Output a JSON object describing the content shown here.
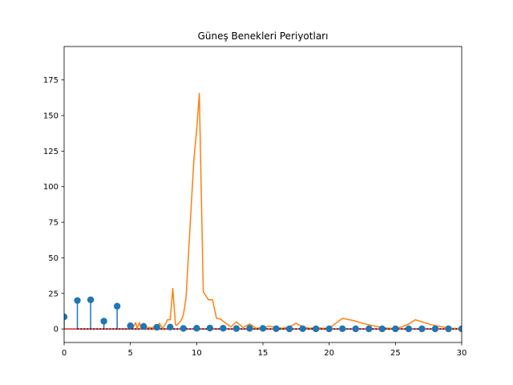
{
  "chart_data": {
    "type": "stem+line",
    "title": "Güneş Benekleri Periyotları",
    "xlabel": "",
    "ylabel": "",
    "xlim": [
      0,
      30
    ],
    "ylim": [
      -9.5,
      198.5
    ],
    "xticks": [
      0,
      5,
      10,
      15,
      20,
      25,
      30
    ],
    "yticks": [
      0,
      25,
      50,
      75,
      100,
      125,
      150,
      175
    ],
    "grid": false,
    "legend": "none",
    "colors": {
      "stem": "#1f77b4",
      "baseline": "#d62728",
      "line": "#ff7f0e",
      "dotted": "#000000"
    },
    "series": [
      {
        "kind": "stem",
        "x": [
          0,
          1,
          2,
          3,
          4,
          5,
          6,
          7,
          8,
          9,
          10,
          11,
          12,
          13,
          14,
          15,
          16,
          17,
          18,
          19,
          20,
          21,
          22,
          23,
          24,
          25,
          26,
          27,
          28,
          29,
          30
        ],
        "values": [
          8.5,
          20,
          20.5,
          5.5,
          16,
          2.2,
          1.8,
          1.2,
          1.3,
          0.4,
          0.5,
          0.6,
          0.5,
          0.3,
          0.4,
          0.4,
          0.2,
          0.1,
          0.2,
          0.1,
          0.1,
          0.2,
          0.1,
          0.1,
          0.1,
          0.1,
          0.1,
          0.1,
          0.1,
          0.1,
          0.1
        ]
      },
      {
        "kind": "line",
        "x": [
          5.0,
          5.2,
          5.4,
          5.5,
          5.6,
          5.7,
          5.8,
          5.9,
          6.0,
          6.2,
          6.4,
          6.6,
          6.8,
          7.0,
          7.2,
          7.4,
          7.6,
          7.8,
          8.0,
          8.2,
          8.4,
          8.5,
          8.6,
          8.8,
          9.0,
          9.2,
          9.4,
          9.6,
          9.8,
          10.0,
          10.2,
          10.5,
          10.9,
          11.2,
          11.5,
          11.8,
          12.2,
          12.6,
          13.0,
          13.5,
          14.0,
          14.5,
          15.0,
          15.5,
          16.0,
          16.5,
          17.0,
          17.5,
          18.0,
          18.5,
          19.0,
          19.5,
          20.0,
          20.5,
          21.0,
          21.8,
          22.5,
          23.2,
          24.0,
          24.5,
          25.0,
          25.5,
          26.0,
          26.5,
          27.0,
          27.7,
          28.5,
          29.2,
          30.0
        ],
        "values": [
          0.5,
          1.0,
          4.5,
          0.5,
          2.5,
          4.5,
          0.3,
          1.0,
          4.0,
          0.5,
          1.2,
          0.8,
          1.5,
          0.8,
          4.0,
          0.5,
          2.5,
          6.5,
          6.5,
          28.5,
          3.0,
          2.5,
          3.5,
          5.5,
          10.0,
          22.0,
          55.0,
          88.0,
          120.0,
          140.0,
          165.5,
          26.0,
          20.5,
          20.5,
          7.5,
          7.0,
          4.0,
          1.5,
          5.0,
          1.0,
          3.5,
          0.5,
          1.0,
          2.0,
          1.0,
          0.5,
          1.5,
          4.0,
          1.5,
          0.5,
          1.0,
          0.5,
          0.5,
          4.0,
          7.5,
          6.0,
          4.0,
          2.5,
          1.0,
          0.5,
          0.5,
          1.5,
          3.5,
          6.5,
          5.0,
          3.0,
          1.5,
          0.5,
          0.2
        ]
      },
      {
        "kind": "dotted-line",
        "x": [
          1,
          30
        ],
        "values": [
          0,
          0
        ]
      }
    ]
  }
}
